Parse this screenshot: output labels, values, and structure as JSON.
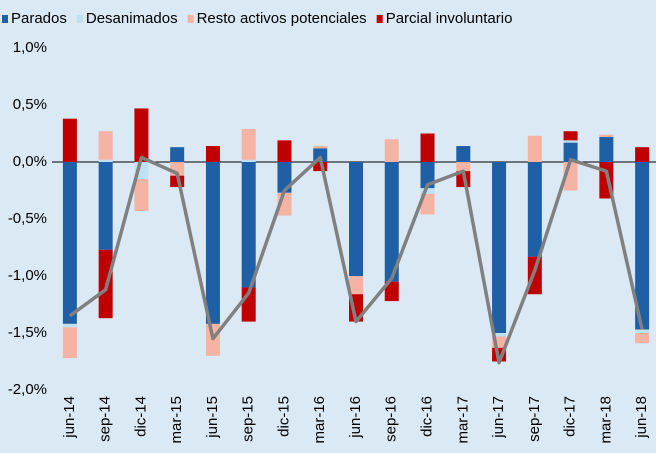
{
  "chart_data": {
    "type": "bar",
    "stacked": true,
    "categories": [
      "jun-14",
      "sep-14",
      "dic-14",
      "mar-15",
      "jun-15",
      "sep-15",
      "dic-15",
      "mar-16",
      "jun-16",
      "sep-16",
      "dic-16",
      "mar-17",
      "jun-17",
      "sep-17",
      "dic-17",
      "mar-18",
      "jun-18"
    ],
    "series": [
      {
        "name": "Parados",
        "color": "#1f5fa6",
        "values": [
          -1.42,
          -0.77,
          0,
          0.13,
          -1.42,
          -1.1,
          -0.27,
          0.12,
          -1.0,
          -1.05,
          -0.23,
          0.14,
          -1.5,
          -0.83,
          0.17,
          0.22,
          -1.47
        ]
      },
      {
        "name": "Desanimados",
        "color": "#bfe0f5",
        "values": [
          -0.03,
          0.02,
          -0.15,
          0,
          0,
          0.02,
          0,
          0,
          0,
          0,
          -0.05,
          0,
          -0.03,
          0,
          0.02,
          0,
          -0.03
        ]
      },
      {
        "name": "Resto activos potenciales",
        "color": "#f4b3a3",
        "values": [
          -0.27,
          0.25,
          -0.28,
          -0.12,
          -0.28,
          0.27,
          -0.2,
          0.02,
          -0.16,
          0.2,
          -0.18,
          -0.08,
          -0.1,
          0.23,
          -0.25,
          0.02,
          -0.09
        ]
      },
      {
        "name": "Parcial involuntario",
        "color": "#c00000",
        "values": [
          0.38,
          -0.6,
          0.47,
          -0.1,
          0.14,
          -0.3,
          0.19,
          -0.08,
          -0.24,
          -0.17,
          0.25,
          -0.14,
          -0.12,
          -0.33,
          0.08,
          -0.32,
          0.13
        ]
      },
      {
        "type": "line",
        "color": "#808080",
        "values": [
          -1.35,
          -1.12,
          0.04,
          -0.1,
          -1.55,
          -1.15,
          -0.25,
          0.04,
          -1.4,
          -1.02,
          -0.2,
          -0.08,
          -1.76,
          -0.95,
          0.02,
          -0.08,
          -1.47
        ]
      }
    ],
    "ylim": [
      -2.0,
      1.0
    ],
    "yticks": [
      {
        "value": -2.0,
        "label": "-2,0%"
      },
      {
        "value": -1.5,
        "label": "-1,5%"
      },
      {
        "value": -1.0,
        "label": "-1,0%"
      },
      {
        "value": -0.5,
        "label": "-0,5%"
      },
      {
        "value": 0,
        "label": "0,0%"
      },
      {
        "value": 0.5,
        "label": "0,5%"
      },
      {
        "value": 1.0,
        "label": "1,0%"
      }
    ],
    "legend": "top"
  }
}
